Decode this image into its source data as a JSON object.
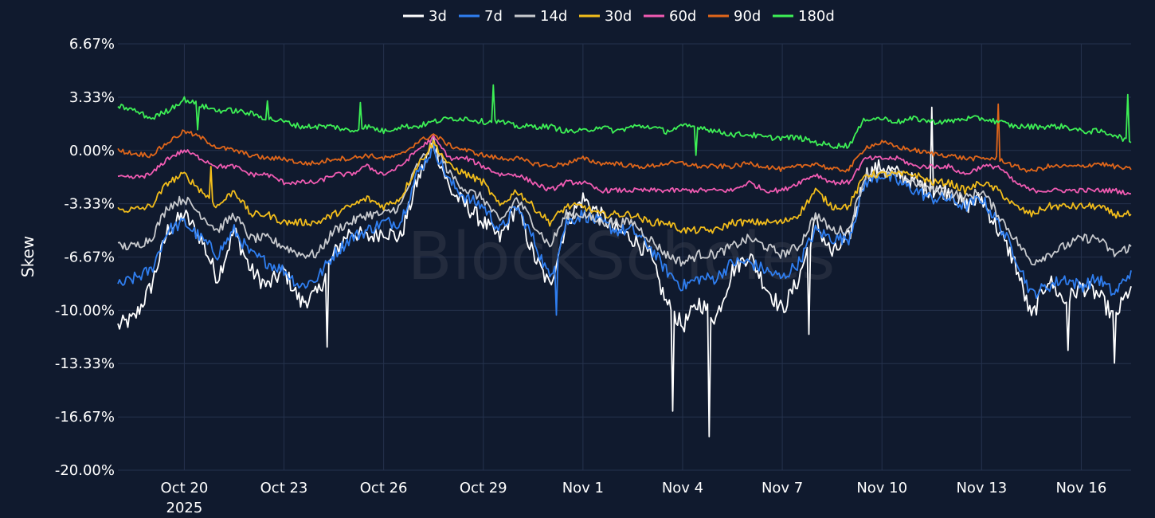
{
  "chart_data": {
    "type": "line",
    "title": "",
    "xlabel": "",
    "ylabel": "Skew",
    "watermark": "BlockScholes",
    "ylim": [
      -20.0,
      6.67
    ],
    "x_range_days": [
      18.0,
      48.5
    ],
    "y_ticks": [
      {
        "value": 6.67,
        "label": "6.67%"
      },
      {
        "value": 3.33,
        "label": "3.33%"
      },
      {
        "value": 0.0,
        "label": "0.00%"
      },
      {
        "value": -3.33,
        "label": "-3.33%"
      },
      {
        "value": -6.67,
        "label": "-6.67%"
      },
      {
        "value": -10.0,
        "label": "-10.00%"
      },
      {
        "value": -13.33,
        "label": "-13.33%"
      },
      {
        "value": -16.67,
        "label": "-16.67%"
      },
      {
        "value": -20.0,
        "label": "-20.00%"
      }
    ],
    "x_ticks": [
      {
        "value": 20,
        "label": "Oct 20",
        "sub": "2025"
      },
      {
        "value": 23,
        "label": "Oct 23",
        "sub": ""
      },
      {
        "value": 26,
        "label": "Oct 26",
        "sub": ""
      },
      {
        "value": 29,
        "label": "Oct 29",
        "sub": ""
      },
      {
        "value": 32,
        "label": "Nov 1",
        "sub": ""
      },
      {
        "value": 35,
        "label": "Nov 4",
        "sub": ""
      },
      {
        "value": 38,
        "label": "Nov 7",
        "sub": ""
      },
      {
        "value": 41,
        "label": "Nov 10",
        "sub": ""
      },
      {
        "value": 44,
        "label": "Nov 13",
        "sub": ""
      },
      {
        "value": 47,
        "label": "Nov 16",
        "sub": ""
      }
    ],
    "series": [
      {
        "name": "3d",
        "color": "#ffffff",
        "x": [
          18,
          18.5,
          19,
          19.5,
          20,
          20.5,
          21,
          21.5,
          22,
          22.5,
          23,
          23.5,
          24,
          24.5,
          25,
          25.5,
          26,
          26.5,
          27,
          27.5,
          28,
          28.5,
          29,
          29.5,
          30,
          30.5,
          31,
          31.5,
          32,
          32.5,
          33,
          33.5,
          34,
          34.5,
          35,
          35.5,
          36,
          36.5,
          37,
          37.5,
          38,
          38.5,
          39,
          39.5,
          40,
          40.5,
          41,
          41.5,
          42,
          42.5,
          43,
          43.5,
          44,
          44.5,
          45,
          45.5,
          46,
          46.5,
          47,
          47.5,
          48,
          48.5
        ],
        "values": [
          -11.0,
          -10.5,
          -8.5,
          -5.0,
          -4.0,
          -5.5,
          -8.0,
          -5.0,
          -7.5,
          -8.5,
          -7.5,
          -9.5,
          -9.0,
          -6.5,
          -5.0,
          -5.5,
          -5.0,
          -5.5,
          -2.0,
          0.5,
          -2.5,
          -3.5,
          -4.5,
          -5.5,
          -3.5,
          -6.5,
          -8.5,
          -4.5,
          -3.0,
          -4.0,
          -5.0,
          -5.5,
          -6.5,
          -9.5,
          -11.0,
          -9.5,
          -10.5,
          -7.5,
          -6.5,
          -8.5,
          -10.0,
          -8.0,
          -4.5,
          -6.5,
          -5.5,
          -1.5,
          -1.0,
          -1.5,
          -2.0,
          -2.5,
          -2.5,
          -3.5,
          -3.0,
          -5.0,
          -7.0,
          -10.5,
          -8.0,
          -9.5,
          -8.5,
          -9.0,
          -10.5,
          -8.5
        ]
      },
      {
        "name": "7d",
        "color": "#2f7ef0",
        "x": [
          18,
          18.5,
          19,
          19.5,
          20,
          20.5,
          21,
          21.5,
          22,
          22.5,
          23,
          23.5,
          24,
          24.5,
          25,
          25.5,
          26,
          26.5,
          27,
          27.5,
          28,
          28.5,
          29,
          29.5,
          30,
          30.5,
          31,
          31.5,
          32,
          32.5,
          33,
          33.5,
          34,
          34.5,
          35,
          35.5,
          36,
          36.5,
          37,
          37.5,
          38,
          38.5,
          39,
          39.5,
          40,
          40.5,
          41,
          41.5,
          42,
          42.5,
          43,
          43.5,
          44,
          44.5,
          45,
          45.5,
          46,
          46.5,
          47,
          47.5,
          48,
          48.5
        ],
        "values": [
          -8.5,
          -8.0,
          -7.5,
          -5.0,
          -4.5,
          -5.5,
          -6.5,
          -5.0,
          -6.5,
          -7.0,
          -7.5,
          -8.5,
          -8.0,
          -6.5,
          -5.5,
          -5.0,
          -4.5,
          -4.5,
          -1.5,
          0.2,
          -2.0,
          -3.0,
          -3.5,
          -5.0,
          -3.5,
          -5.5,
          -8.0,
          -4.5,
          -4.0,
          -4.5,
          -5.0,
          -5.0,
          -6.0,
          -7.5,
          -8.5,
          -8.0,
          -8.0,
          -7.0,
          -7.0,
          -7.5,
          -8.0,
          -7.0,
          -5.0,
          -5.5,
          -5.5,
          -2.0,
          -1.5,
          -2.0,
          -2.5,
          -3.0,
          -3.0,
          -3.5,
          -3.0,
          -4.5,
          -6.5,
          -9.0,
          -8.5,
          -8.0,
          -8.5,
          -8.0,
          -9.0,
          -7.5
        ]
      },
      {
        "name": "14d",
        "color": "#c8cace",
        "x": [
          18,
          18.5,
          19,
          19.5,
          20,
          20.5,
          21,
          21.5,
          22,
          22.5,
          23,
          23.5,
          24,
          24.5,
          25,
          25.5,
          26,
          26.5,
          27,
          27.5,
          28,
          28.5,
          29,
          29.5,
          30,
          30.5,
          31,
          31.5,
          32,
          32.5,
          33,
          33.5,
          34,
          34.5,
          35,
          35.5,
          36,
          36.5,
          37,
          37.5,
          38,
          38.5,
          39,
          39.5,
          40,
          40.5,
          41,
          41.5,
          42,
          42.5,
          43,
          43.5,
          44,
          44.5,
          45,
          45.5,
          46,
          46.5,
          47,
          47.5,
          48,
          48.5
        ],
        "values": [
          -6.0,
          -6.0,
          -5.5,
          -3.5,
          -3.0,
          -4.0,
          -5.0,
          -4.0,
          -5.5,
          -5.5,
          -6.0,
          -6.5,
          -6.5,
          -5.0,
          -4.5,
          -4.0,
          -4.0,
          -3.5,
          -1.0,
          0.5,
          -1.5,
          -2.5,
          -3.0,
          -4.5,
          -3.0,
          -4.5,
          -6.0,
          -4.0,
          -4.0,
          -4.5,
          -4.5,
          -4.5,
          -5.5,
          -6.5,
          -7.0,
          -6.5,
          -6.5,
          -6.0,
          -5.5,
          -6.0,
          -6.5,
          -6.0,
          -4.0,
          -5.0,
          -5.0,
          -1.5,
          -1.5,
          -1.5,
          -2.0,
          -2.5,
          -2.5,
          -3.0,
          -2.5,
          -4.0,
          -5.5,
          -7.0,
          -6.5,
          -6.0,
          -5.5,
          -5.5,
          -6.5,
          -6.0
        ]
      },
      {
        "name": "30d",
        "color": "#f2bd1b",
        "x": [
          18,
          18.5,
          19,
          19.5,
          20,
          20.5,
          21,
          21.5,
          22,
          22.5,
          23,
          23.5,
          24,
          24.5,
          25,
          25.5,
          26,
          26.5,
          27,
          27.5,
          28,
          28.5,
          29,
          29.5,
          30,
          30.5,
          31,
          31.5,
          32,
          32.5,
          33,
          33.5,
          34,
          34.5,
          35,
          35.5,
          36,
          36.5,
          37,
          37.5,
          38,
          38.5,
          39,
          39.5,
          40,
          40.5,
          41,
          41.5,
          42,
          42.5,
          43,
          43.5,
          44,
          44.5,
          45,
          45.5,
          46,
          46.5,
          47,
          47.5,
          48,
          48.5
        ],
        "values": [
          -3.7,
          -3.7,
          -3.5,
          -2.0,
          -1.5,
          -2.5,
          -3.5,
          -2.5,
          -4.0,
          -4.0,
          -4.5,
          -4.5,
          -4.5,
          -4.0,
          -3.5,
          -3.0,
          -3.5,
          -3.0,
          -1.0,
          0.5,
          -1.0,
          -1.5,
          -2.0,
          -3.5,
          -2.5,
          -3.5,
          -4.5,
          -3.5,
          -3.5,
          -4.0,
          -4.0,
          -4.0,
          -4.5,
          -4.5,
          -5.0,
          -5.0,
          -5.0,
          -4.5,
          -4.5,
          -4.5,
          -4.5,
          -4.0,
          -2.5,
          -3.5,
          -3.5,
          -1.5,
          -1.5,
          -1.5,
          -1.5,
          -2.0,
          -2.0,
          -2.5,
          -2.0,
          -2.5,
          -3.5,
          -4.0,
          -3.5,
          -3.5,
          -3.5,
          -3.5,
          -4.0,
          -4.0
        ]
      },
      {
        "name": "60d",
        "color": "#f05bb2",
        "x": [
          18,
          18.5,
          19,
          19.5,
          20,
          20.5,
          21,
          21.5,
          22,
          22.5,
          23,
          23.5,
          24,
          24.5,
          25,
          25.5,
          26,
          26.5,
          27,
          27.5,
          28,
          28.5,
          29,
          29.5,
          30,
          30.5,
          31,
          31.5,
          32,
          32.5,
          33,
          33.5,
          34,
          34.5,
          35,
          35.5,
          36,
          36.5,
          37,
          37.5,
          38,
          38.5,
          39,
          39.5,
          40,
          40.5,
          41,
          41.5,
          42,
          42.5,
          43,
          43.5,
          44,
          44.5,
          45,
          45.5,
          46,
          46.5,
          47,
          47.5,
          48,
          48.5
        ],
        "values": [
          -1.7,
          -1.7,
          -1.5,
          -0.5,
          0.0,
          -0.5,
          -1.0,
          -1.0,
          -1.5,
          -1.5,
          -2.0,
          -2.0,
          -2.0,
          -1.5,
          -1.5,
          -1.0,
          -1.5,
          -1.0,
          0.0,
          0.8,
          -0.5,
          -0.5,
          -1.0,
          -1.5,
          -1.5,
          -2.0,
          -2.5,
          -2.0,
          -2.0,
          -2.5,
          -2.5,
          -2.5,
          -2.5,
          -2.5,
          -2.5,
          -2.5,
          -2.5,
          -2.5,
          -2.0,
          -2.5,
          -2.5,
          -2.0,
          -1.5,
          -2.0,
          -2.0,
          -0.5,
          -0.5,
          -0.5,
          -1.0,
          -1.0,
          -1.0,
          -1.5,
          -1.0,
          -1.0,
          -2.0,
          -2.5,
          -2.5,
          -2.5,
          -2.5,
          -2.5,
          -2.5,
          -2.7
        ]
      },
      {
        "name": "90d",
        "color": "#e0661a",
        "x": [
          18,
          18.5,
          19,
          19.5,
          20,
          20.5,
          21,
          21.5,
          22,
          22.5,
          23,
          23.5,
          24,
          24.5,
          25,
          25.5,
          26,
          26.5,
          27,
          27.5,
          28,
          28.5,
          29,
          29.5,
          30,
          30.5,
          31,
          31.5,
          32,
          32.5,
          33,
          33.5,
          34,
          34.5,
          35,
          35.5,
          36,
          36.5,
          37,
          37.5,
          38,
          38.5,
          39,
          39.5,
          40,
          40.5,
          41,
          41.5,
          42,
          42.5,
          43,
          43.5,
          44,
          44.5,
          45,
          45.5,
          46,
          46.5,
          47,
          47.5,
          48,
          48.5
        ],
        "values": [
          0.0,
          -0.2,
          -0.3,
          0.5,
          1.2,
          0.8,
          0.2,
          0.0,
          -0.3,
          -0.5,
          -0.5,
          -0.8,
          -0.8,
          -0.5,
          -0.5,
          -0.3,
          -0.5,
          -0.3,
          0.5,
          1.0,
          0.3,
          0.0,
          -0.3,
          -0.5,
          -0.5,
          -0.8,
          -1.0,
          -0.8,
          -0.5,
          -0.8,
          -0.8,
          -1.0,
          -1.0,
          -0.8,
          -0.8,
          -1.0,
          -1.0,
          -1.0,
          -0.8,
          -1.0,
          -1.2,
          -1.0,
          -0.8,
          -1.2,
          -1.2,
          0.2,
          0.5,
          0.2,
          0.0,
          -0.2,
          -0.3,
          -0.5,
          -0.5,
          -0.5,
          -1.0,
          -1.3,
          -1.0,
          -1.0,
          -1.0,
          -0.8,
          -1.0,
          -1.2
        ]
      },
      {
        "name": "180d",
        "color": "#3def55",
        "x": [
          18,
          18.5,
          19,
          19.5,
          20,
          20.5,
          21,
          21.5,
          22,
          22.5,
          23,
          23.5,
          24,
          24.5,
          25,
          25.5,
          26,
          26.5,
          27,
          27.5,
          28,
          28.5,
          29,
          29.5,
          30,
          30.5,
          31,
          31.5,
          32,
          32.5,
          33,
          33.5,
          34,
          34.5,
          35,
          35.5,
          36,
          36.5,
          37,
          37.5,
          38,
          38.5,
          39,
          39.5,
          40,
          40.5,
          41,
          41.5,
          42,
          42.5,
          43,
          43.5,
          44,
          44.5,
          45,
          45.5,
          46,
          46.5,
          47,
          47.5,
          48,
          48.5
        ],
        "values": [
          2.8,
          2.5,
          2.0,
          2.5,
          3.2,
          2.8,
          2.5,
          2.5,
          2.3,
          2.0,
          1.8,
          1.5,
          1.5,
          1.5,
          1.2,
          1.5,
          1.2,
          1.5,
          1.5,
          1.8,
          2.0,
          2.0,
          1.8,
          1.8,
          1.5,
          1.5,
          1.5,
          1.2,
          1.2,
          1.5,
          1.2,
          1.5,
          1.5,
          1.2,
          1.5,
          1.5,
          1.2,
          1.0,
          1.0,
          0.8,
          0.8,
          0.8,
          0.5,
          0.3,
          0.3,
          2.0,
          2.0,
          1.8,
          2.0,
          1.8,
          1.8,
          2.0,
          2.0,
          1.8,
          1.5,
          1.5,
          1.5,
          1.5,
          1.2,
          1.2,
          1.0,
          0.5
        ]
      }
    ],
    "spikes": [
      {
        "series": "3d",
        "x": 24.3,
        "y": -12.3
      },
      {
        "series": "3d",
        "x": 34.7,
        "y": -16.3
      },
      {
        "series": "3d",
        "x": 35.8,
        "y": -17.9
      },
      {
        "series": "3d",
        "x": 38.8,
        "y": -11.5
      },
      {
        "series": "3d",
        "x": 42.5,
        "y": 2.7
      },
      {
        "series": "3d",
        "x": 46.6,
        "y": -12.5
      },
      {
        "series": "3d",
        "x": 48.0,
        "y": -13.3
      },
      {
        "series": "7d",
        "x": 31.2,
        "y": -10.3
      },
      {
        "series": "30d",
        "x": 20.8,
        "y": -1.0
      },
      {
        "series": "60d",
        "x": 25.4,
        "y": -1.0
      },
      {
        "series": "90d",
        "x": 44.5,
        "y": 2.9
      },
      {
        "series": "180d",
        "x": 20.4,
        "y": 1.3
      },
      {
        "series": "180d",
        "x": 22.5,
        "y": 3.1
      },
      {
        "series": "180d",
        "x": 25.3,
        "y": 3.0
      },
      {
        "series": "180d",
        "x": 29.3,
        "y": 4.1
      },
      {
        "series": "180d",
        "x": 35.4,
        "y": -0.3
      },
      {
        "series": "180d",
        "x": 48.4,
        "y": 3.5
      }
    ]
  }
}
